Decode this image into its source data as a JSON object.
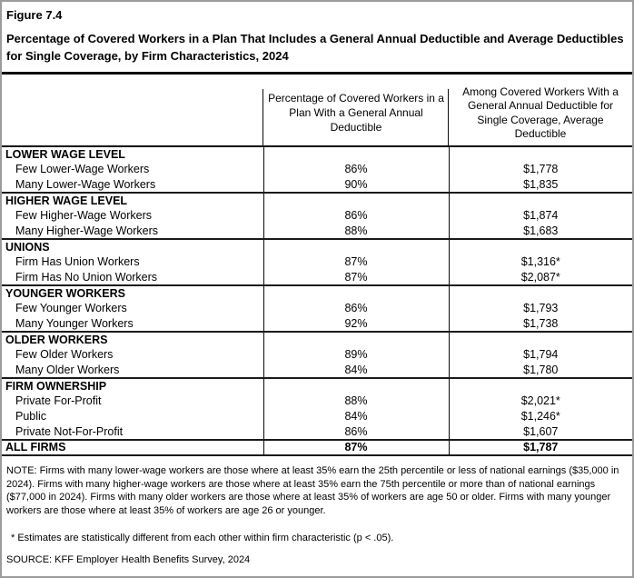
{
  "figure": {
    "label": "Figure 7.4",
    "title": "Percentage of Covered Workers in a Plan That Includes a General Annual Deductible and Average Deductibles for Single Coverage, by Firm Characteristics, 2024"
  },
  "chart_data": {
    "type": "table",
    "columns": [
      "",
      "Percentage of Covered Workers in a Plan With a General Annual Deductible",
      "Among Covered Workers With a General Annual Deductible for Single Coverage, Average Deductible"
    ],
    "sections": [
      {
        "header": "LOWER WAGE LEVEL",
        "rows": [
          {
            "label": "Few Lower-Wage Workers",
            "pct": "86%",
            "deductible": "$1,778"
          },
          {
            "label": "Many Lower-Wage Workers",
            "pct": "90%",
            "deductible": "$1,835"
          }
        ]
      },
      {
        "header": "HIGHER WAGE LEVEL",
        "rows": [
          {
            "label": "Few Higher-Wage Workers",
            "pct": "86%",
            "deductible": "$1,874"
          },
          {
            "label": "Many Higher-Wage Workers",
            "pct": "88%",
            "deductible": "$1,683"
          }
        ]
      },
      {
        "header": "UNIONS",
        "rows": [
          {
            "label": "Firm Has Union Workers",
            "pct": "87%",
            "deductible": "$1,316*"
          },
          {
            "label": "Firm Has No Union Workers",
            "pct": "87%",
            "deductible": "$2,087*"
          }
        ]
      },
      {
        "header": "YOUNGER WORKERS",
        "rows": [
          {
            "label": "Few Younger Workers",
            "pct": "86%",
            "deductible": "$1,793"
          },
          {
            "label": "Many Younger Workers",
            "pct": "92%",
            "deductible": "$1,738"
          }
        ]
      },
      {
        "header": "OLDER WORKERS",
        "rows": [
          {
            "label": "Few Older Workers",
            "pct": "89%",
            "deductible": "$1,794"
          },
          {
            "label": "Many Older Workers",
            "pct": "84%",
            "deductible": "$1,780"
          }
        ]
      },
      {
        "header": "FIRM OWNERSHIP",
        "rows": [
          {
            "label": "Private For-Profit",
            "pct": "88%",
            "deductible": "$2,021*"
          },
          {
            "label": "Public",
            "pct": "84%",
            "deductible": "$1,246*"
          },
          {
            "label": "Private Not-For-Profit",
            "pct": "86%",
            "deductible": "$1,607"
          }
        ]
      }
    ],
    "total_row": {
      "label": "ALL FIRMS",
      "pct": "87%",
      "deductible": "$1,787"
    }
  },
  "notes": {
    "note": "NOTE: Firms with many lower-wage workers are those where at least 35% earn the 25th percentile or less of national earnings ($35,000 in 2024). Firms with many higher-wage workers are those where at least 35% earn the 75th percentile or more than of national earnings ($77,000 in 2024). Firms with many older workers are those where at least 35% of workers are age 50 or older. Firms with many younger workers are those where at least 35% of workers are age 26 or younger.",
    "asterisk": "* Estimates are statistically different from each other within firm characteristic (p < .05).",
    "source": "SOURCE: KFF Employer Health Benefits Survey, 2024"
  },
  "colors": {
    "background": "#ffffff",
    "text": "#000000",
    "table_border": "#0a0a0a",
    "frame_border": "#9c9c9c"
  }
}
